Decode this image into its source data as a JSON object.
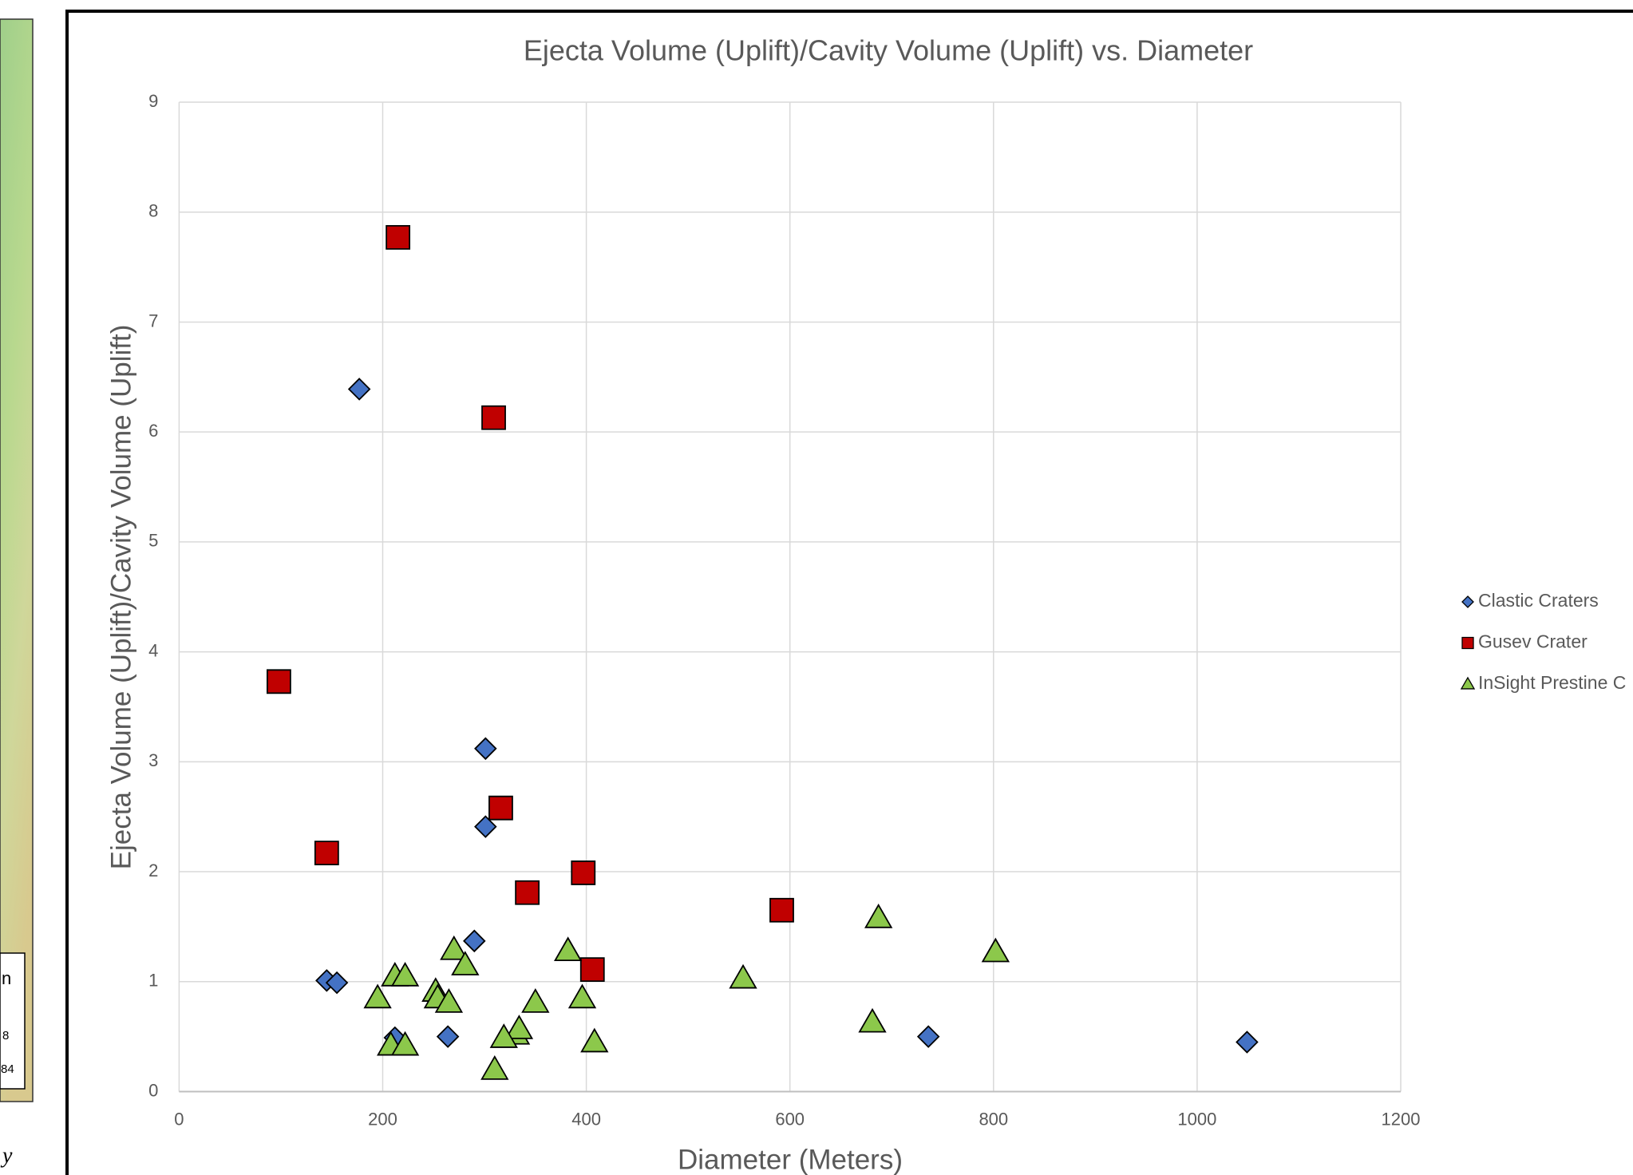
{
  "chart_data": {
    "type": "scatter",
    "title": "Ejecta Volume (Uplift)/Cavity Volume (Uplift) vs. Diameter",
    "x_label": "Diameter (Meters)",
    "y_label": "Ejecta Volume (Uplift)/Cavity Volume (Uplift)",
    "xlim": [
      0,
      1200
    ],
    "xticks": [
      0,
      200,
      400,
      600,
      800,
      1000,
      1200
    ],
    "ylim": [
      0,
      9
    ],
    "yticks": [
      0,
      1,
      2,
      3,
      4,
      5,
      6,
      7,
      8,
      9
    ],
    "grid": true,
    "legend": "right",
    "series": [
      {
        "name": "Clastic Craters",
        "color": "#4472c4",
        "marker": "diamond",
        "x": [
          177,
          301,
          301,
          290,
          145,
          155,
          212,
          264,
          736,
          1049
        ],
        "values": [
          6.39,
          3.12,
          2.41,
          1.37,
          1.01,
          0.99,
          0.49,
          0.5,
          0.5,
          0.45
        ]
      },
      {
        "name": "Gusev Crater",
        "color": "#c00000",
        "marker": "square",
        "x": [
          215,
          309,
          98,
          316,
          145,
          397,
          342,
          592,
          406
        ],
        "values": [
          7.77,
          6.13,
          3.73,
          2.58,
          2.17,
          1.99,
          1.81,
          1.65,
          1.11
        ]
      },
      {
        "name": "InSight Prestine C",
        "color": "#8cc84b",
        "marker": "triangle",
        "x": [
          687,
          802,
          554,
          681,
          382,
          270,
          281,
          212,
          222,
          195,
          252,
          254,
          265,
          350,
          396,
          331,
          334,
          319,
          408,
          208,
          222,
          310
        ],
        "values": [
          1.58,
          1.27,
          1.03,
          0.63,
          1.28,
          1.29,
          1.15,
          1.05,
          1.05,
          0.85,
          0.91,
          0.85,
          0.81,
          0.81,
          0.85,
          0.52,
          0.57,
          0.49,
          0.45,
          0.42,
          0.42,
          0.2
        ]
      }
    ]
  },
  "map_fragment": {
    "labels": [
      "n",
      "8",
      "84"
    ],
    "footer": "y"
  }
}
